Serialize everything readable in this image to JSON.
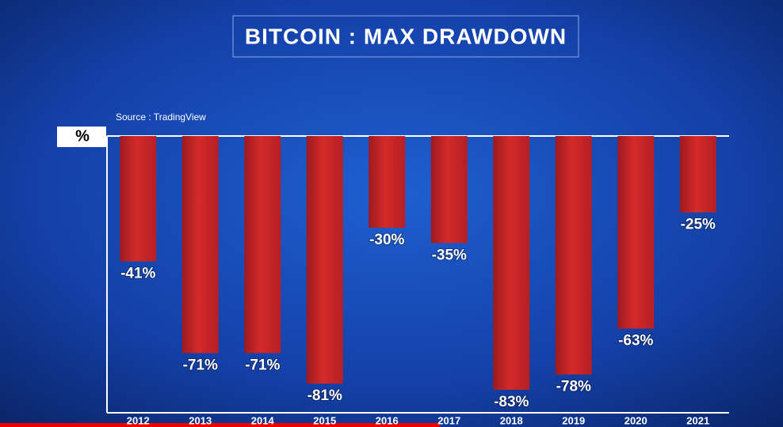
{
  "chart_data": {
    "type": "bar",
    "title": "BITCOIN : MAX DRAWDOWN",
    "subtitle": "Source : TradingView",
    "y_label": "%",
    "categories": [
      "2012",
      "2013",
      "2014",
      "2015",
      "2016",
      "2017",
      "2018",
      "2019",
      "2020",
      "2021"
    ],
    "values": [
      -41,
      -71,
      -71,
      -81,
      -30,
      -35,
      -83,
      -78,
      -63,
      -25
    ],
    "value_labels": [
      "-41%",
      "-71%",
      "-71%",
      "-81%",
      "-30%",
      "-35%",
      "-83%",
      "-78%",
      "-63%",
      "-25%"
    ],
    "color": "#d42a2a",
    "ylim": [
      -90,
      0
    ]
  }
}
